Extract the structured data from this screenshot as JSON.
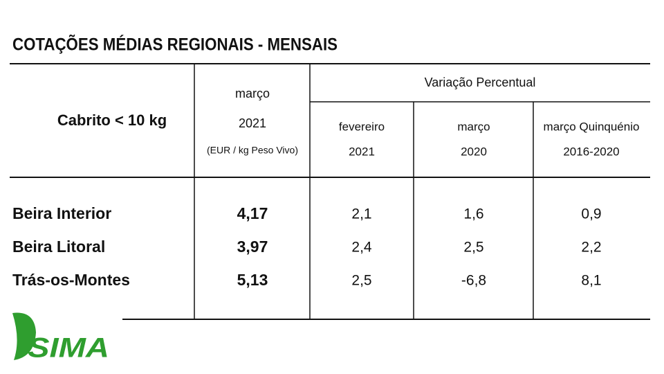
{
  "title": "COTAÇÕES MÉDIAS REGIONAIS - MENSAIS",
  "table": {
    "header": {
      "row_label": "Cabrito < 10 kg",
      "price_col": [
        "março",
        "2021",
        "(EUR / kg Peso Vivo)"
      ],
      "group": "Variação Percentual",
      "sub": [
        [
          "fevereiro",
          "2021"
        ],
        [
          "março",
          "2020"
        ],
        [
          "março Quinquénio",
          "2016-2020"
        ]
      ]
    },
    "rows": [
      [
        "Beira Interior",
        "4,17",
        "2,1",
        "1,6",
        "0,9"
      ],
      [
        "Beira Litoral",
        "3,97",
        "2,4",
        "2,5",
        "2,2"
      ],
      [
        "Trás-os-Montes",
        "5,13",
        "2,5",
        "-6,8",
        "8,1"
      ]
    ]
  },
  "logo": "SIMA"
}
